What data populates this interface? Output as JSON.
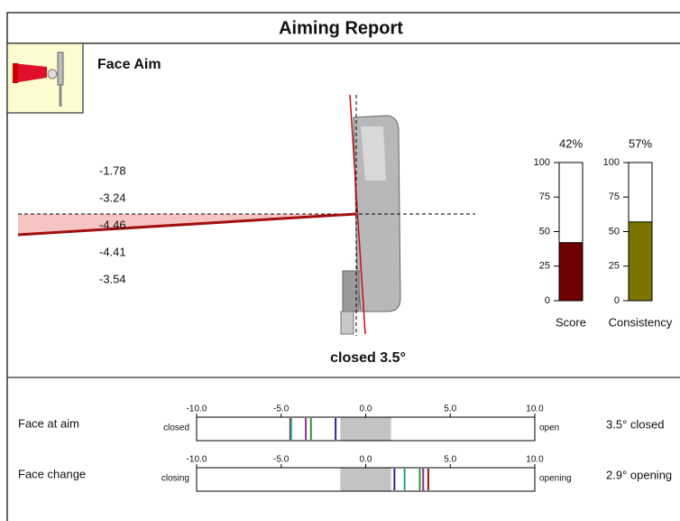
{
  "header": {
    "title": "Aiming Report"
  },
  "section": {
    "title": "Face Aim"
  },
  "face_aim": {
    "readings": [
      -1.78,
      -3.24,
      -4.46,
      -4.41,
      -3.54
    ],
    "colors": [
      "#26268f",
      "#2a952a",
      "#8f1a1a",
      "#22a0a0",
      "#962596"
    ],
    "summary": "closed 3.5°"
  },
  "gauges": {
    "ylim": [
      0,
      100
    ],
    "yticks": [
      0,
      25,
      50,
      75,
      100
    ],
    "items": [
      {
        "name": "Score",
        "value": 42,
        "value_label": "42%",
        "color": "#6e0000"
      },
      {
        "name": "Consistency",
        "value": 57,
        "value_label": "57%",
        "color": "#7a7400"
      }
    ]
  },
  "scale": {
    "xlim": [
      -10,
      10
    ],
    "xticks": [
      {
        "value": -10,
        "label": "-10.0"
      },
      {
        "value": -5,
        "label": "-5.0"
      },
      {
        "value": 0,
        "label": "0.0"
      },
      {
        "value": 5,
        "label": "5.0"
      },
      {
        "value": 10,
        "label": "10.0"
      }
    ],
    "band": [
      -1.5,
      1.5
    ]
  },
  "rows": [
    {
      "label": "Face at aim",
      "left": "closed",
      "right": "open",
      "result": "3.5° closed",
      "values": [
        -1.78,
        -3.24,
        -4.46,
        -4.41,
        -3.54
      ],
      "colors": [
        "#26268f",
        "#2a952a",
        "#8f1a1a",
        "#22a0a0",
        "#962596"
      ]
    },
    {
      "label": "Face change",
      "left": "closing",
      "right": "opening",
      "result": "2.9° opening",
      "values": [
        1.7,
        3.2,
        3.7,
        2.3,
        3.4
      ],
      "colors": [
        "#26268f",
        "#2a952a",
        "#8f1a1a",
        "#22a0a0",
        "#962596"
      ]
    }
  ]
}
